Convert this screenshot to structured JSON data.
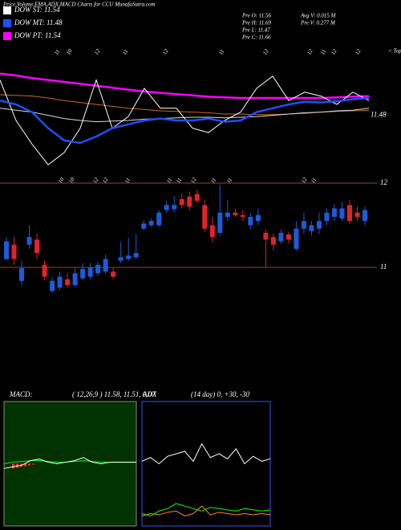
{
  "header": {
    "title": "Price,Volume,EMA,ADX,MACD Charts for CCU MunafaSutra.com",
    "legend": [
      {
        "label": "DOW ST: 11.54",
        "color": "#ffffff"
      },
      {
        "label": "DOW MT: 11.48",
        "color": "#1f4fff"
      },
      {
        "label": "DOW PT: 11.54",
        "color": "#ff00ff"
      }
    ],
    "info_left": [
      "Pre  O: 11.56",
      "Pre  H: 11.69",
      "Pre  L: 11.47",
      "Pre  C: 11.66"
    ],
    "info_right": [
      "Avg V: 0.015 M",
      "Pre  V: 0.277 M"
    ]
  },
  "chart_data": [
    {
      "type": "line",
      "annotation": "< Tops",
      "date_labels": [
        "11",
        "10",
        "12",
        "11",
        "12",
        "11",
        "12",
        "12",
        "11",
        "12",
        "12"
      ],
      "ylim": [
        10.5,
        12.5
      ],
      "yticks": [
        11.48
      ],
      "series": [
        {
          "color": "#ff00ff",
          "width": 2.5,
          "values": [
            12.13,
            12.1,
            12.06,
            12.03,
            12.0,
            11.97,
            11.94,
            11.91,
            11.88,
            11.85,
            11.83,
            11.81,
            11.79,
            11.77,
            11.76,
            11.75,
            11.75,
            11.75,
            11.75,
            11.75,
            11.75,
            11.76,
            11.77,
            11.78
          ]
        },
        {
          "color": "#cc6a1a",
          "width": 1,
          "values": [
            11.8,
            11.79,
            11.78,
            11.75,
            11.71,
            11.68,
            11.65,
            11.62,
            11.59,
            11.57,
            11.55,
            11.54,
            11.53,
            11.52,
            11.5,
            11.5,
            11.49,
            11.49,
            11.5,
            11.51,
            11.53,
            11.54,
            11.55,
            11.56
          ]
        },
        {
          "color": "#d9d9d9",
          "width": 1,
          "values": [
            11.59,
            11.56,
            11.53,
            11.48,
            11.43,
            11.4,
            11.38,
            11.39,
            11.4,
            11.42,
            11.43,
            11.44,
            11.45,
            11.45,
            11.44,
            11.45,
            11.46,
            11.48,
            11.5,
            11.52,
            11.53,
            11.55,
            11.56,
            11.59
          ]
        },
        {
          "color": "#ffffff",
          "width": 1,
          "values": [
            12.03,
            11.4,
            11.03,
            10.71,
            10.9,
            11.28,
            12.03,
            11.28,
            11.46,
            11.9,
            11.59,
            11.59,
            11.28,
            11.21,
            11.4,
            11.53,
            11.9,
            12.09,
            11.71,
            11.84,
            11.78,
            11.65,
            11.84,
            11.71
          ]
        },
        {
          "color": "#1f4fff",
          "width": 2.5,
          "values": [
            11.71,
            11.65,
            11.53,
            11.28,
            11.09,
            11.05,
            11.15,
            11.28,
            11.34,
            11.4,
            11.43,
            11.4,
            11.4,
            11.43,
            11.38,
            11.4,
            11.53,
            11.59,
            11.65,
            11.69,
            11.68,
            11.7,
            11.73,
            11.75
          ]
        }
      ]
    },
    {
      "type": "candlestick",
      "date_labels": [
        "10",
        "10",
        "12",
        "12",
        "11",
        "11",
        "11",
        "12",
        "11",
        "11",
        "12",
        "11"
      ],
      "ylim": [
        10.5,
        12.5
      ],
      "yticks": [
        12,
        11
      ],
      "grid": true,
      "grid_color": "#8b4a2b",
      "up_color": "#1e5bd8",
      "down_color": "#e0242a",
      "open": [
        11.1,
        11.27,
        10.84,
        11.27,
        11.33,
        11.03,
        10.72,
        10.76,
        10.86,
        10.79,
        10.87,
        10.89,
        10.93,
        10.95,
        10.95,
        11.08,
        11.1,
        11.12,
        11.46,
        11.5,
        11.5,
        11.68,
        11.69,
        11.81,
        11.84,
        11.87,
        11.74,
        11.5,
        11.41,
        11.6,
        11.65,
        11.62,
        11.5,
        11.55,
        11.41,
        11.36,
        11.31,
        11.39,
        11.22,
        11.46,
        11.43,
        11.46,
        11.55,
        11.6,
        11.58,
        11.74,
        11.65,
        11.55
      ],
      "high": [
        11.36,
        11.36,
        11.08,
        11.5,
        11.4,
        11.08,
        10.88,
        10.95,
        10.93,
        11.0,
        11.05,
        11.05,
        11.06,
        11.15,
        11.0,
        11.3,
        11.35,
        11.4,
        11.56,
        11.58,
        11.68,
        11.79,
        11.85,
        11.88,
        11.9,
        11.92,
        11.8,
        11.6,
        11.98,
        11.8,
        11.7,
        11.68,
        11.65,
        11.7,
        11.45,
        11.4,
        11.45,
        11.42,
        11.55,
        11.65,
        11.55,
        11.65,
        11.7,
        11.75,
        11.78,
        11.8,
        11.72,
        11.72
      ],
      "low": [
        11.08,
        11.03,
        10.79,
        11.22,
        11.1,
        10.85,
        10.7,
        10.73,
        10.76,
        10.77,
        10.85,
        10.86,
        10.9,
        10.92,
        10.86,
        11.05,
        11.08,
        11.1,
        11.44,
        11.48,
        11.48,
        11.65,
        11.66,
        11.7,
        11.68,
        11.76,
        11.42,
        11.3,
        11.38,
        11.55,
        11.6,
        11.55,
        11.45,
        11.5,
        11.0,
        11.2,
        11.28,
        11.28,
        11.2,
        11.4,
        11.38,
        11.4,
        11.5,
        11.55,
        11.55,
        11.52,
        11.55,
        11.5
      ],
      "close": [
        11.31,
        11.1,
        10.99,
        11.36,
        11.17,
        10.89,
        10.84,
        10.89,
        10.79,
        10.93,
        10.98,
        11.0,
        11.03,
        11.1,
        10.89,
        11.12,
        11.14,
        11.17,
        11.52,
        11.55,
        11.65,
        11.74,
        11.74,
        11.74,
        11.72,
        11.79,
        11.46,
        11.36,
        11.65,
        11.65,
        11.62,
        11.6,
        11.6,
        11.62,
        11.33,
        11.27,
        11.41,
        11.33,
        11.46,
        11.55,
        11.5,
        11.55,
        11.65,
        11.7,
        11.7,
        11.55,
        11.6,
        11.68
      ]
    },
    {
      "type": "macd",
      "label": "MACD:",
      "params": "( 12,26,9 ) 11.58, 11.51, 0.07",
      "background": "#003300",
      "ylim": [
        -4,
        4
      ],
      "series": [
        {
          "color": "#00ff00",
          "values": [
            0,
            0.1,
            0.15,
            0.2,
            0.2,
            0.15,
            0.1,
            0.1,
            0.15,
            0.2,
            0.15,
            0.1,
            0.1,
            0.1,
            0.1,
            0.1
          ]
        },
        {
          "color": "#ffffff",
          "values": [
            -0.3,
            -0.2,
            -0.1,
            0.2,
            0.3,
            0.1,
            0,
            0.1,
            0.2,
            0.4,
            0.1,
            0,
            0.1,
            0.1,
            0.1,
            0.1
          ]
        }
      ],
      "histogram": {
        "color": "#ff3333",
        "values": [
          -0.3,
          -0.25,
          -0.2,
          -0.15,
          -0.1,
          -0.05
        ]
      }
    },
    {
      "type": "adx",
      "label": "ADX",
      "params": "(14 day) 0, +30, -30",
      "background": "#000000",
      "border": "#3355ff",
      "ylim": [
        0,
        100
      ],
      "series": [
        {
          "color": "#ffffff",
          "values": [
            52,
            55,
            50,
            56,
            58,
            60,
            52,
            66,
            55,
            58,
            54,
            62,
            50,
            56,
            52,
            54
          ]
        },
        {
          "color": "#ff8c1a",
          "values": [
            8,
            10,
            9,
            11,
            12,
            8,
            10,
            16,
            9,
            11,
            10,
            9,
            10,
            9,
            10,
            9
          ]
        },
        {
          "color": "#00ff00",
          "values": [
            10,
            8,
            12,
            14,
            18,
            16,
            14,
            12,
            15,
            14,
            13,
            12,
            14,
            13,
            12,
            13
          ]
        }
      ]
    }
  ]
}
